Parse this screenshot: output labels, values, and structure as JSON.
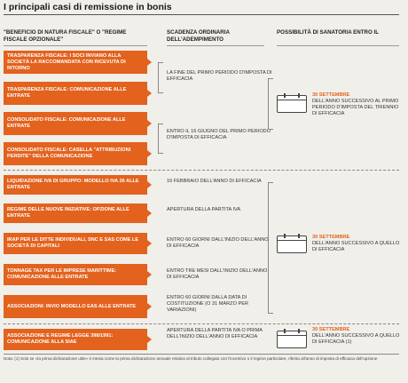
{
  "title": "I principali casi di remissione in bonis",
  "headers": {
    "col1": "\"BENEFICIO DI NATURA FISCALE\" O \"REGIME FISCALE OPZIONALE\"",
    "col2": "SCADENZA ORDINARIA DELL'ADEMPIMENTO",
    "col3": "POSSIBILITÀ DI SANATORIA ENTRO IL"
  },
  "items": [
    "TRASPARENZA FISCALE: I SOCI INVIANO ALLA SOCIETÀ LA RACCOMANDATA CON RICEVUTA DI RITORNO",
    "TRASPARENZA FISCALE: COMUNICAZIONE ALLE ENTRATE",
    "CONSOLIDATO FISCALE: COMUNICAZIONE ALLE ENTRATE",
    "CONSOLIDATO FISCALE: CASELLA \"ATTRIBUZIONI PERDITE\" DELLA COMUNICAZIONE",
    "LIQUIDAZIONE IVA DI GRUPPO: MODELLO IVA 26 ALLE ENTRATE",
    "REGIME DELLE NUOVE INIZIATIVE: OPZIONE ALLE ENTRATE",
    "IRAP PER LE DITTE INDIVIDUALI, SNC E SAS COME LE SOCIETÀ DI CAPITALI",
    "TONNAGE TAX PER LE IMPRESE MARITTIME: COMUNICAZIONE ALLE ENTRATE",
    "ASSOCIAZIONI: INVIO MODELLO EAS ALLE ENTRATE",
    "ASSOCIAZIONE E REGIME LEGGE 398/1991: COMUNICAZIONE ALLA SIAE"
  ],
  "deadlines": [
    "LA FINE DEL PRIMO PERIODO D'IMPOSTA DI EFFICACIA",
    "ENTRO IL 16 GIUGNO DEL PRIMO PERIODO D'IMPOSTA DI EFFICACIA",
    "16 FEBBRAIO DELL'ANNO DI EFFICACIA",
    "APERTURA DELLA PARTITA IVA",
    "ENTRO 60 GIORNI DALL'INIZIO DELL'ANNO DI EFFICACIA",
    "ENTRO TRE MESI DALL'INIZIO DELL'ANNO DI EFFICACIA",
    "ENTRO 60 GIORNI DALLA DATA DI COSTITUZIONE (O 31 MARZO PER VARIAZIONI)",
    "APERTURA DELLA PARTITA IVA O PRIMA DELL'INIZIO DELL'ANNO DI EFFICACIA"
  ],
  "sanatorie": [
    {
      "date": "30 SETTEMBRE",
      "text": "DELL'ANNO SUCCESSIVO AL PRIMO PERIODO D'IMPOSTA DEL TRIENNIO DI EFFICACIA"
    },
    {
      "date": "30 SETTEMBRE",
      "text": "DELL'ANNO SUCCESSIVO A QUELLO DI EFFICACIA"
    },
    {
      "date": "30 SETTEMBRE",
      "text": "DELL'ANNO SUCCESSIVO A QUELLO DI EFFICACIA (1)"
    }
  ],
  "note": "Nota: (1) Solo se «la prima dichiarazione utile» è intesa come la prima dichiarazione annuale relativa al tributo collegato con l'incentivo o il regime particolare, riferita all'anno di imposta di efficacia dell'opzione",
  "colors": {
    "accent": "#e2621e"
  },
  "icons": [
    "calendar-icon"
  ]
}
